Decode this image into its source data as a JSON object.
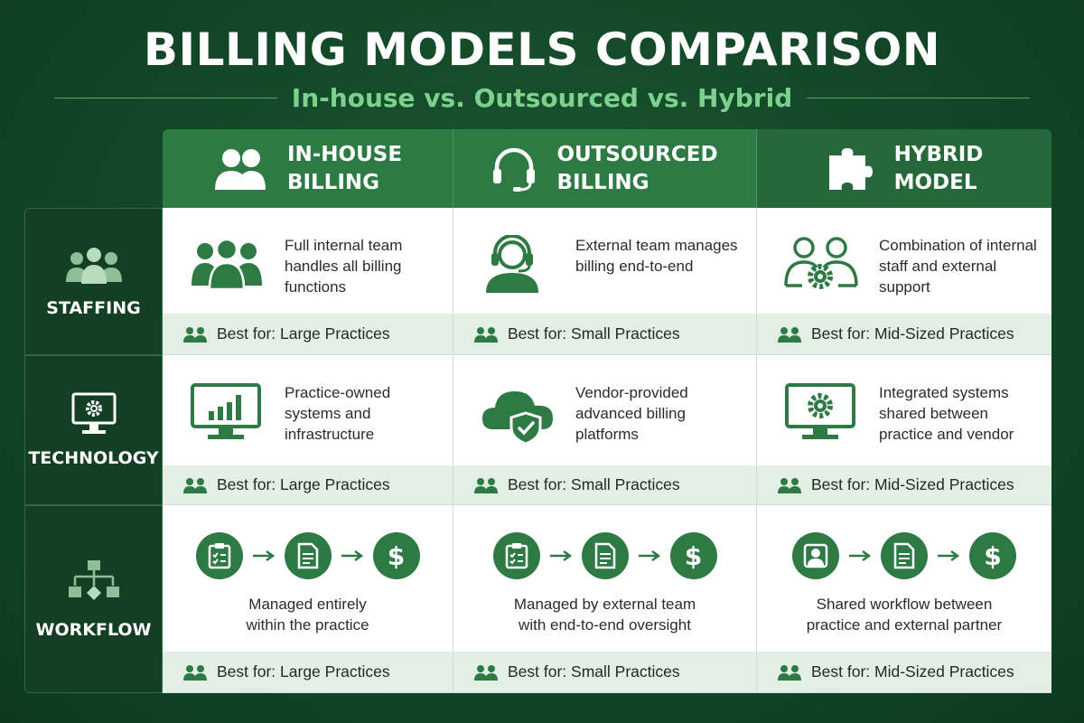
{
  "title": "BILLING MODELS COMPARISON",
  "subtitle": "In-house vs. Outsourced vs. Hybrid",
  "columns": [
    {
      "title": "IN-HOUSE\nBILLING",
      "icon": "team-icon"
    },
    {
      "title": "OUTSOURCED\nBILLING",
      "icon": "headset-icon"
    },
    {
      "title": "HYBRID\nMODEL",
      "icon": "puzzle-icon"
    }
  ],
  "rows": [
    {
      "label": "STAFFING",
      "icon": "people-group-icon",
      "cells": [
        {
          "desc": "Full internal team handles all billing functions",
          "best_for": "Best for: Large Practices",
          "icon": "team-icon"
        },
        {
          "desc": "External team manages billing end-to-end",
          "best_for": "Best for: Small Practices",
          "icon": "headset-agent-icon"
        },
        {
          "desc": "Combination of internal staff and external support",
          "best_for": "Best for: Mid-Sized Practices",
          "icon": "people-gear-icon"
        }
      ]
    },
    {
      "label": "TECHNOLOGY",
      "icon": "monitor-gear-icon",
      "cells": [
        {
          "desc": "Practice-owned systems and infrastructure",
          "best_for": "Best for: Large Practices",
          "icon": "monitor-chart-icon"
        },
        {
          "desc": "Vendor-provided advanced billing platforms",
          "best_for": "Best for: Small Practices",
          "icon": "cloud-shield-icon"
        },
        {
          "desc": "Integrated systems shared between practice and vendor",
          "best_for": "Best for: Mid-Sized Practices",
          "icon": "monitor-gear-icon"
        }
      ]
    },
    {
      "label": "WORKFLOW",
      "icon": "flowchart-icon",
      "cells": [
        {
          "desc_lines": [
            "Managed entirely",
            "within the practice"
          ],
          "best_for": "Best for: Large Practices",
          "flow": [
            "clipboard-icon",
            "document-icon",
            "dollar-icon"
          ]
        },
        {
          "desc_lines": [
            "Managed by external team",
            "with end-to-end oversight"
          ],
          "best_for": "Best for: Small Practices",
          "flow": [
            "clipboard-icon",
            "document-icon",
            "dollar-icon"
          ]
        },
        {
          "desc_lines": [
            "Shared workflow between",
            "practice and external partner"
          ],
          "best_for": "Best for: Mid-Sized Practices",
          "flow": [
            "person-icon",
            "document-icon",
            "dollar-icon"
          ]
        }
      ]
    }
  ],
  "flow_dollar": "$",
  "colors": {
    "primary": "#2e7a45",
    "dark": "#144a29",
    "accent_text": "#7ed08f",
    "best_for_bg": "#e3efe5"
  }
}
